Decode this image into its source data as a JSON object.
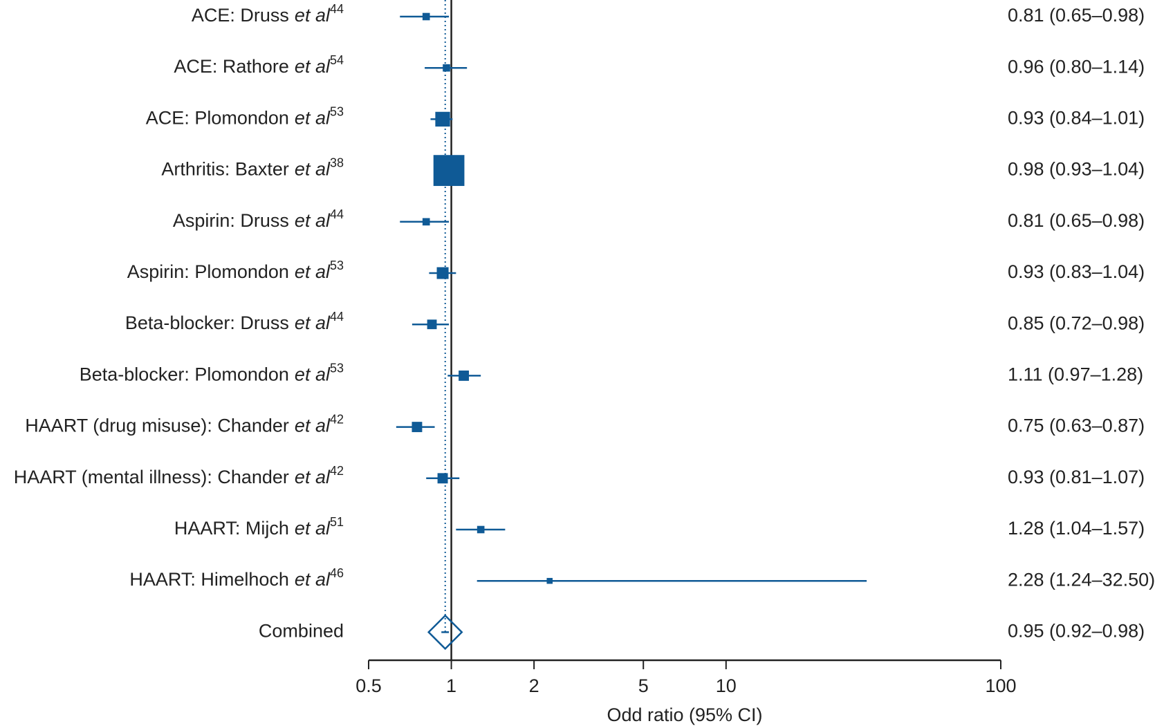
{
  "chart_data": {
    "type": "forest",
    "color": "#0f5a96",
    "log_scale": true,
    "xlim": [
      0.5,
      100
    ],
    "xticks": [
      0.5,
      1,
      2,
      5,
      10,
      100
    ],
    "xlabel": "Odd ratio (95% CI)",
    "reference_line": 1,
    "categories": [
      {
        "name": "ACE: Druss",
        "emphasis": "et al",
        "ref": "44"
      },
      {
        "name": "ACE: Rathore",
        "emphasis": "et al",
        "ref": "54"
      },
      {
        "name": "ACE: Plomondon",
        "emphasis": "et al",
        "ref": "53"
      },
      {
        "name": "Arthritis: Baxter",
        "emphasis": "et al",
        "ref": "38"
      },
      {
        "name": "Aspirin: Druss",
        "emphasis": "et al",
        "ref": "44"
      },
      {
        "name": "Aspirin: Plomondon",
        "emphasis": "et al",
        "ref": "53"
      },
      {
        "name": "Beta-blocker: Druss",
        "emphasis": "et al",
        "ref": "44"
      },
      {
        "name": "Beta-blocker: Plomondon",
        "emphasis": "et al",
        "ref": "53"
      },
      {
        "name": "HAART (drug misuse): Chander",
        "emphasis": "et al",
        "ref": "42"
      },
      {
        "name": "HAART (mental illness): Chander",
        "emphasis": "et al",
        "ref": "42"
      },
      {
        "name": "HAART: Mijch",
        "emphasis": "et al",
        "ref": "51"
      },
      {
        "name": "HAART: Himelhoch",
        "emphasis": "et al",
        "ref": "46"
      }
    ],
    "estimates": [
      0.81,
      0.96,
      0.93,
      0.98,
      0.81,
      0.93,
      0.85,
      1.11,
      0.75,
      0.93,
      1.28,
      2.28
    ],
    "lower": [
      0.65,
      0.8,
      0.84,
      0.93,
      0.65,
      0.83,
      0.72,
      0.97,
      0.63,
      0.81,
      1.04,
      1.24
    ],
    "upper": [
      0.98,
      1.14,
      1.01,
      1.04,
      0.98,
      1.04,
      0.98,
      1.28,
      0.87,
      1.07,
      1.57,
      32.5
    ],
    "weights": [
      10,
      10,
      20,
      42,
      10,
      16,
      13,
      14,
      14,
      14,
      10,
      8
    ],
    "value_labels": [
      "0.81 (0.65–0.98)",
      "0.96 (0.80–1.14)",
      "0.93 (0.84–1.01)",
      "0.98 (0.93–1.04)",
      "0.81 (0.65–0.98)",
      "0.93 (0.83–1.04)",
      "0.85 (0.72–0.98)",
      "1.11 (0.97–1.28)",
      "0.75 (0.63–0.87)",
      "0.93 (0.81–1.07)",
      "1.28 (1.04–1.57)",
      "2.28 (1.24–32.50)"
    ],
    "combined": {
      "name": "Combined",
      "estimate": 0.95,
      "lower": 0.92,
      "upper": 0.98,
      "value_label": "0.95 (0.92–0.98)"
    }
  }
}
